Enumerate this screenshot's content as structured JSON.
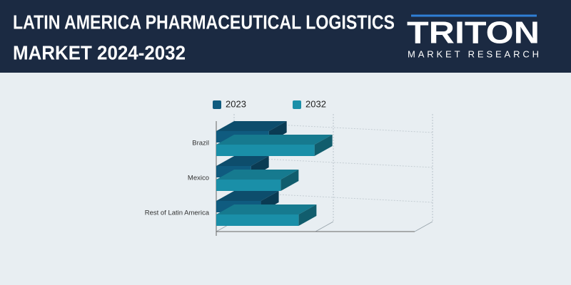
{
  "header": {
    "title": [
      "LATIN AMERICA PHARMACEUTICAL LOGISTICS",
      "MARKET 2024-2032"
    ],
    "logo": "TRITON",
    "logo_sub": "MARKET RESEARCH"
  },
  "chart_data": {
    "type": "bar3d_horizontal",
    "categories": [
      "Brazil",
      "Mexico",
      "Rest of Latin America"
    ],
    "series": [
      {
        "name": "2023",
        "color": "#0f5b7f",
        "values": [
          0.53,
          0.35,
          0.45
        ]
      },
      {
        "name": "2032",
        "color": "#1a8fa8",
        "values": [
          0.99,
          0.65,
          0.83
        ]
      }
    ],
    "xlim": [
      0,
      2
    ],
    "grid_at": [
      0,
      1,
      2
    ],
    "grid": true
  }
}
